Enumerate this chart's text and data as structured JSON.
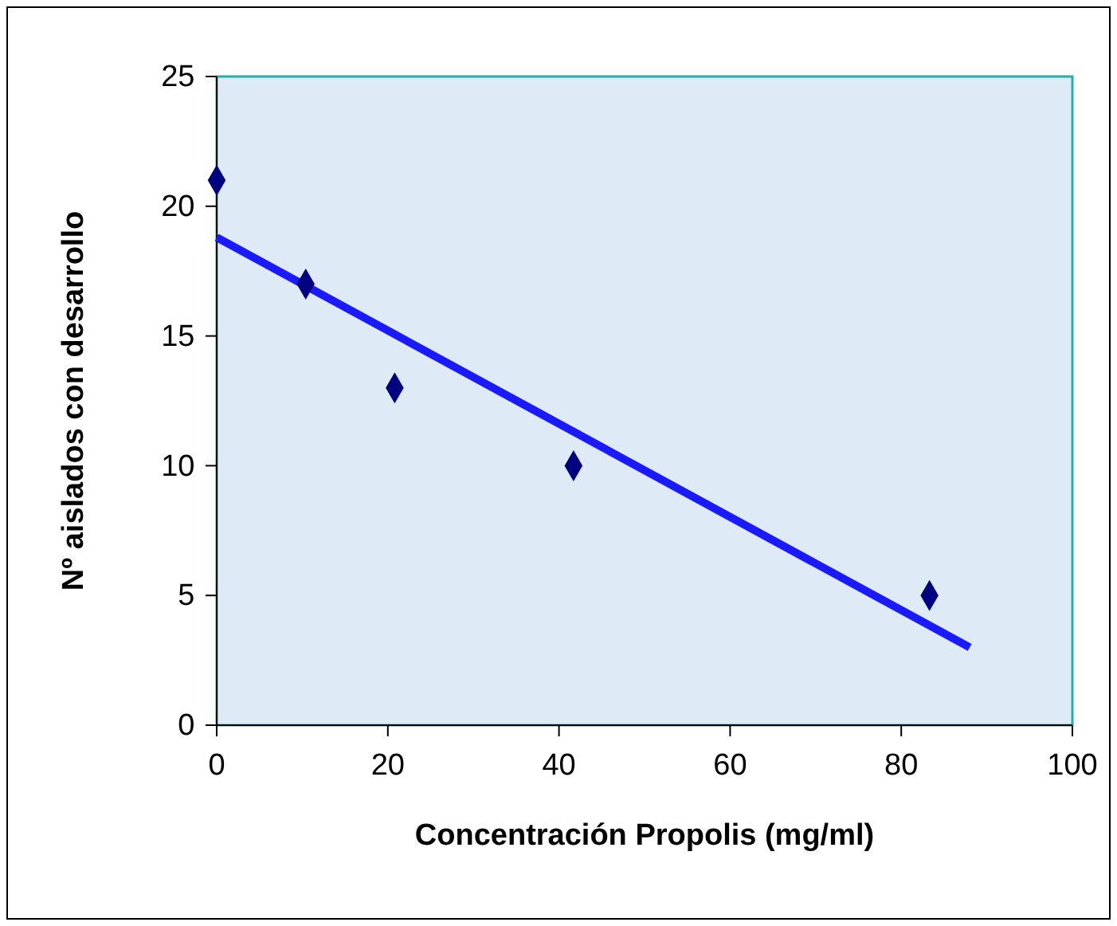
{
  "chart_data": {
    "type": "scatter",
    "xlabel": "Concentración Propolis (mg/ml)",
    "ylabel": "Nº aislados con desarrollo",
    "xlim": [
      0,
      100
    ],
    "xticks": [
      0,
      20,
      40,
      60,
      80,
      100
    ],
    "ylim": [
      0,
      25
    ],
    "yticks": [
      0,
      5,
      10,
      15,
      20,
      25
    ],
    "grid": false,
    "marker": "diamond",
    "series": [
      {
        "color": "#000080",
        "x": [
          0,
          10.4,
          20.8,
          41.7,
          83.3
        ],
        "values": [
          21,
          17,
          13,
          10,
          5
        ]
      },
      {
        "type": "line",
        "color": "#1a1aff",
        "x": [
          0,
          88
        ],
        "values": [
          18.8,
          3
        ],
        "marker": "none",
        "line_style": "solid"
      }
    ]
  }
}
